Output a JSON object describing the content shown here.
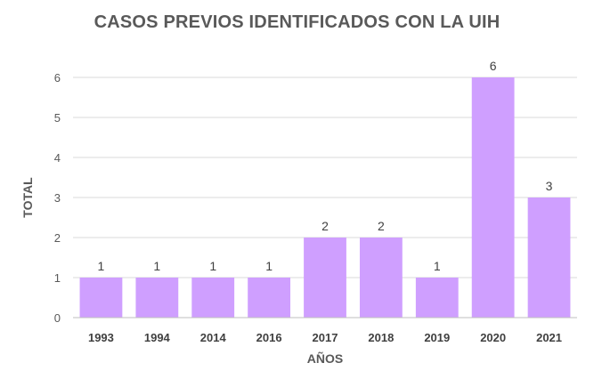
{
  "chart_data": {
    "type": "bar",
    "title": "CASOS PREVIOS IDENTIFICADOS CON LA UIH",
    "xlabel": "AÑOS",
    "ylabel": "TOTAL",
    "categories": [
      "1993",
      "1994",
      "2014",
      "2016",
      "2017",
      "2018",
      "2019",
      "2020",
      "2021"
    ],
    "values": [
      1,
      1,
      1,
      1,
      2,
      2,
      1,
      6,
      3
    ],
    "yticks": [
      "0",
      "1",
      "2",
      "3",
      "4",
      "5",
      "6"
    ],
    "ylim": [
      0,
      6
    ],
    "grid": true,
    "legend": "none",
    "bar_color": "#cf9fff",
    "grid_color": "#d9d9d9"
  }
}
